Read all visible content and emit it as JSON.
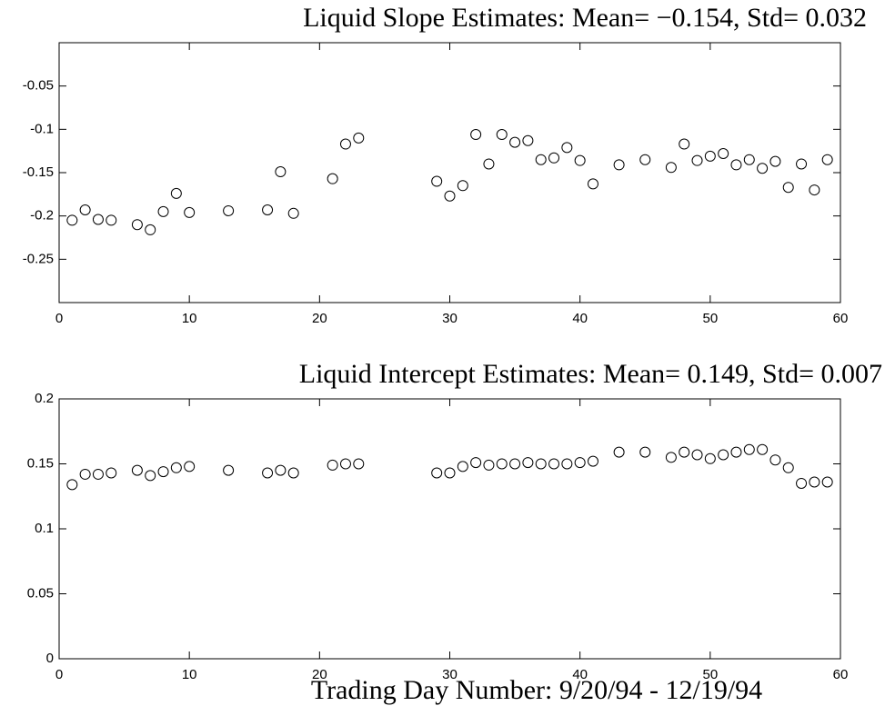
{
  "chart_data": [
    {
      "type": "scatter",
      "title": "Liquid Slope Estimates: Mean= −0.154, Std= 0.032",
      "x": [
        1,
        2,
        3,
        4,
        6,
        7,
        8,
        9,
        10,
        13,
        16,
        17,
        18,
        21,
        22,
        23,
        29,
        30,
        31,
        32,
        33,
        34,
        35,
        36,
        37,
        38,
        39,
        40,
        41,
        43,
        45,
        47,
        48,
        49,
        50,
        51,
        52,
        53,
        54,
        55,
        56,
        57,
        58,
        59
      ],
      "values": [
        -0.205,
        -0.193,
        -0.204,
        -0.205,
        -0.21,
        -0.216,
        -0.195,
        -0.174,
        -0.196,
        -0.194,
        -0.193,
        -0.149,
        -0.197,
        -0.157,
        -0.117,
        -0.11,
        -0.16,
        -0.177,
        -0.165,
        -0.106,
        -0.14,
        -0.106,
        -0.115,
        -0.113,
        -0.135,
        -0.133,
        -0.121,
        -0.136,
        -0.163,
        -0.141,
        -0.135,
        -0.144,
        -0.117,
        -0.136,
        -0.131,
        -0.128,
        -0.141,
        -0.135,
        -0.145,
        -0.137,
        -0.167,
        -0.14,
        -0.17,
        -0.135
      ],
      "color": "#000000",
      "xlim": [
        0,
        60
      ],
      "xticks": [
        0,
        10,
        20,
        30,
        40,
        50,
        60
      ],
      "ylim": [
        -0.3,
        0
      ],
      "yticks": [
        -0.25,
        -0.2,
        -0.15,
        -0.1,
        -0.05
      ]
    },
    {
      "type": "scatter",
      "title": "Liquid Intercept Estimates: Mean= 0.149, Std= 0.007",
      "x_label": "Trading Day Number: 9/20/94 - 12/19/94",
      "x": [
        1,
        2,
        3,
        4,
        6,
        7,
        8,
        9,
        10,
        13,
        16,
        17,
        18,
        21,
        22,
        23,
        29,
        30,
        31,
        32,
        33,
        34,
        35,
        36,
        37,
        38,
        39,
        40,
        41,
        43,
        45,
        47,
        48,
        49,
        50,
        51,
        52,
        53,
        54,
        55,
        56,
        57,
        58,
        59
      ],
      "values": [
        0.134,
        0.142,
        0.142,
        0.143,
        0.145,
        0.141,
        0.144,
        0.147,
        0.148,
        0.145,
        0.143,
        0.145,
        0.143,
        0.149,
        0.15,
        0.15,
        0.143,
        0.143,
        0.148,
        0.151,
        0.149,
        0.15,
        0.15,
        0.151,
        0.15,
        0.15,
        0.15,
        0.151,
        0.152,
        0.159,
        0.159,
        0.155,
        0.159,
        0.157,
        0.154,
        0.157,
        0.159,
        0.161,
        0.161,
        0.153,
        0.147,
        0.135,
        0.136,
        0.136
      ],
      "color": "#000000",
      "xlim": [
        0,
        60
      ],
      "xticks": [
        0,
        10,
        20,
        30,
        40,
        50,
        60
      ],
      "ylim": [
        0,
        0.2
      ],
      "yticks": [
        0,
        0.05,
        0.1,
        0.15,
        0.2
      ]
    }
  ]
}
